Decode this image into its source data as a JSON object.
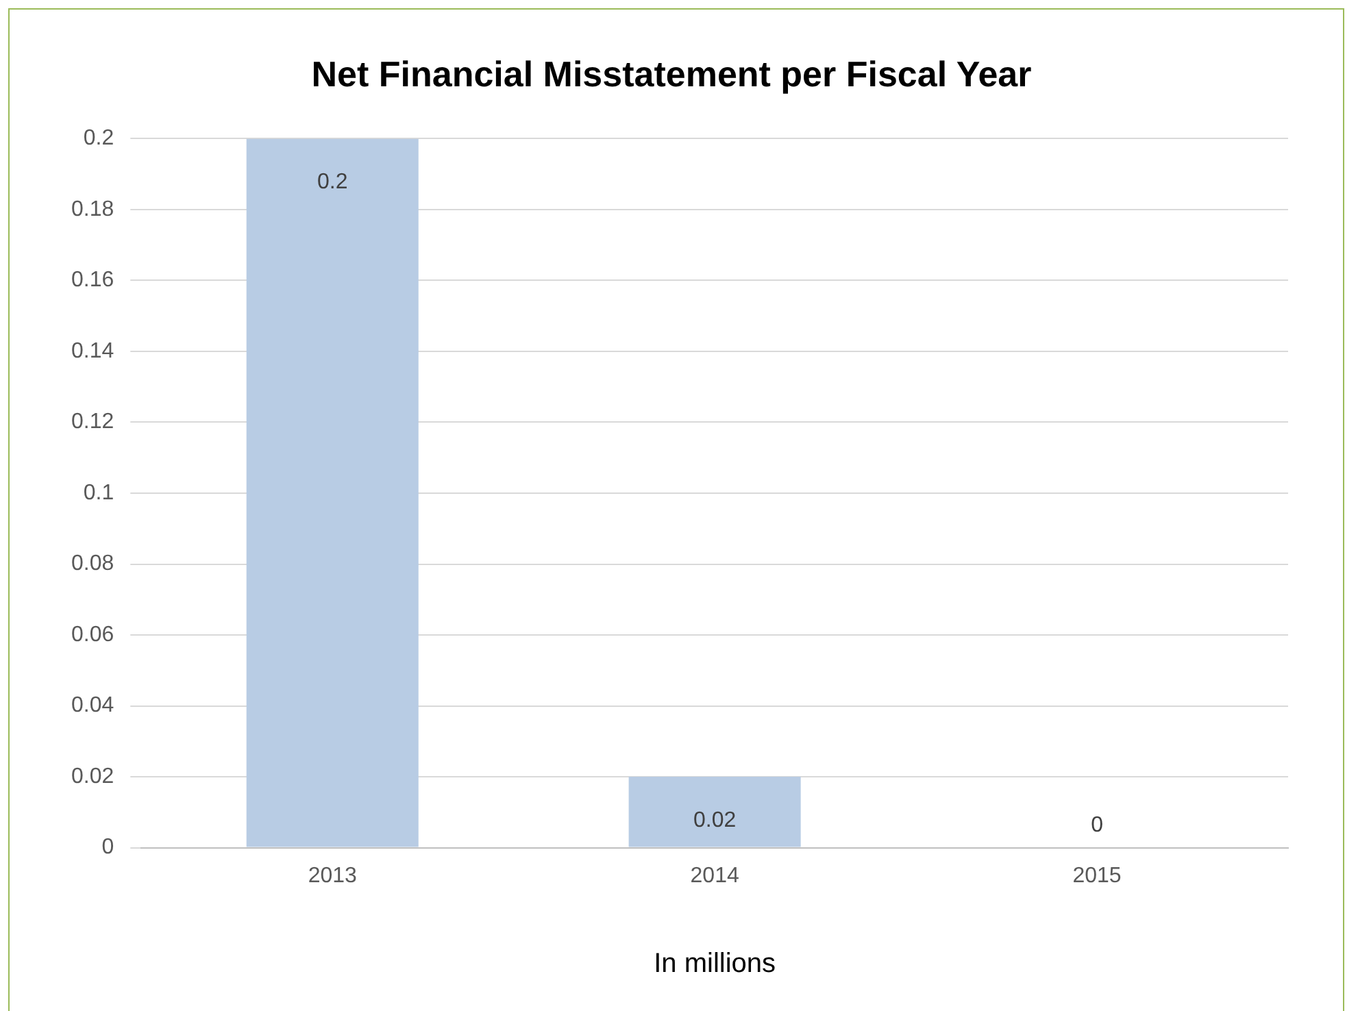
{
  "chart_data": {
    "type": "bar",
    "title": "Net Financial Misstatement per Fiscal Year",
    "xlabel": "In millions",
    "categories": [
      "2013",
      "2014",
      "2015"
    ],
    "values": [
      0.2,
      0.02,
      0
    ],
    "color": "#b8cce4",
    "ylim": [
      0,
      0.2
    ],
    "yticks": [
      0,
      0.02,
      0.04,
      0.06,
      0.08,
      0.1,
      0.12,
      0.14,
      0.16,
      0.18,
      0.2
    ],
    "grid": "y",
    "data_labels": true,
    "legend": false
  }
}
